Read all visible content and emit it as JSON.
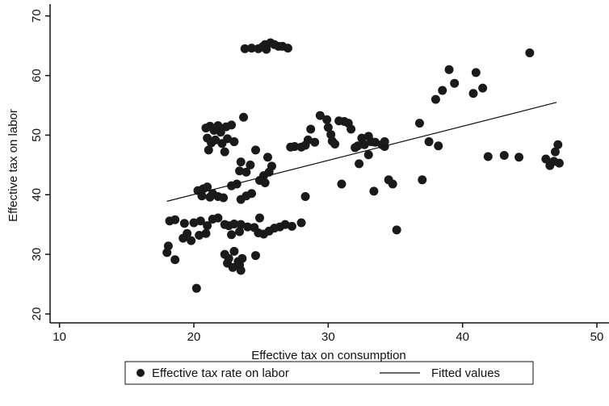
{
  "chart_data": {
    "type": "scatter",
    "x_label": "Effective tax on consumption",
    "y_label": "Effective tax on labor",
    "xlim": [
      9.3,
      50.9
    ],
    "ylim": [
      18.5,
      72
    ],
    "xticks": [
      10,
      20,
      30,
      40,
      50
    ],
    "yticks": [
      20,
      30,
      40,
      50,
      60,
      70
    ],
    "legend": "bottom",
    "series": [
      {
        "name": "Effective tax rate on labor",
        "color": "#1a1a1a",
        "mode": "markers",
        "x": [
          23.8,
          24.3,
          24.8,
          25.1,
          25.4,
          25.7,
          26,
          26.3,
          26.6,
          27,
          25.3,
          20.9,
          21.2,
          21.5,
          21.8,
          22,
          22.4,
          22.8,
          21,
          21.3,
          21.6,
          22.1,
          22.5,
          21.1,
          22.3,
          23,
          23.5,
          24.2,
          24.6,
          25.5,
          25.8,
          25.6,
          25.2,
          24.9,
          25.3,
          23.4,
          23.9,
          24.3,
          23.9,
          23.5,
          23.7,
          22.8,
          23.2,
          20.3,
          20.7,
          21,
          21.4,
          21.8,
          22.2,
          21.2,
          20.6,
          18.2,
          18.6,
          19.3,
          20,
          20.5,
          21,
          21.4,
          21.8,
          22.3,
          22.6,
          23,
          23.5,
          24,
          24.5,
          24.8,
          25.2,
          25.6,
          26,
          26.4,
          26.8,
          27.3,
          28,
          24.9,
          23.4,
          20.4,
          20.9,
          19.5,
          19.8,
          19.2,
          22.8,
          18,
          18.1,
          18.6,
          20.2,
          22.3,
          22.6,
          23,
          23.3,
          23.6,
          22.5,
          22.9,
          23.5,
          23.4,
          24.6,
          27.2,
          27.5,
          28,
          28.3,
          28.5,
          28.7,
          29,
          29.4,
          29.9,
          30,
          30.2,
          30.3,
          30.5,
          30.8,
          31.2,
          31.5,
          31.7,
          32,
          32.2,
          32.5,
          32.7,
          33,
          33.2,
          33.5,
          34,
          34.2,
          32.3,
          33,
          31,
          28.3,
          33.4,
          34.5,
          34.8,
          35.1,
          34.2,
          36.8,
          37,
          37.5,
          38,
          38.5,
          39,
          39.4,
          38.2,
          40.8,
          41,
          41.5,
          41.9,
          43.1,
          44.2,
          45,
          46.2,
          46.5,
          46.8,
          46.9,
          47.1,
          47.2
        ],
        "values": [
          64.5,
          64.6,
          64.5,
          64.8,
          64.4,
          65.5,
          65.2,
          64.9,
          64.9,
          64.6,
          65.2,
          51.2,
          51.5,
          50.8,
          51.6,
          50.5,
          51.4,
          51.7,
          49.5,
          48.7,
          49.2,
          48.6,
          49.4,
          47.5,
          47.2,
          48.9,
          45.5,
          45,
          47.5,
          46.3,
          44.8,
          43.8,
          43.2,
          42.4,
          42,
          44,
          43.8,
          40.2,
          39.8,
          39.2,
          53,
          41.5,
          41.8,
          40.7,
          41,
          41.3,
          40.2,
          39.7,
          39.5,
          39.6,
          39.8,
          35.6,
          35.8,
          35.2,
          35.3,
          35.6,
          34.8,
          35.9,
          36.1,
          35,
          34.8,
          35.1,
          35,
          34.6,
          34.5,
          33.6,
          33.4,
          33.9,
          34.4,
          34.6,
          35,
          34.7,
          35.3,
          36.1,
          33.8,
          33.2,
          33.5,
          33.5,
          32.3,
          32.7,
          33.3,
          30.3,
          31.4,
          29.1,
          24.3,
          30,
          29.3,
          30.5,
          28.8,
          29.3,
          28.5,
          27.8,
          27.3,
          28.2,
          29.8,
          48,
          48.1,
          48,
          48.3,
          49.2,
          51,
          48.8,
          53.3,
          52.6,
          51.3,
          50.1,
          49,
          48.5,
          52.4,
          52.3,
          52,
          51,
          47.9,
          48.2,
          49.5,
          48.4,
          49.8,
          48.9,
          48.8,
          48.4,
          48.9,
          45.2,
          46.7,
          41.8,
          39.7,
          40.6,
          42.5,
          41.8,
          34.1,
          48.1,
          52,
          42.5,
          48.9,
          56,
          57.5,
          61,
          58.7,
          48.2,
          57,
          60.5,
          57.9,
          46.4,
          46.6,
          46.3,
          63.8,
          46,
          44.9,
          45.6,
          47.2,
          48.4,
          45.3
        ]
      },
      {
        "name": "Fitted values",
        "color": "#111111",
        "mode": "line",
        "x": [
          18,
          47
        ],
        "values": [
          38.9,
          55.5
        ]
      }
    ]
  }
}
